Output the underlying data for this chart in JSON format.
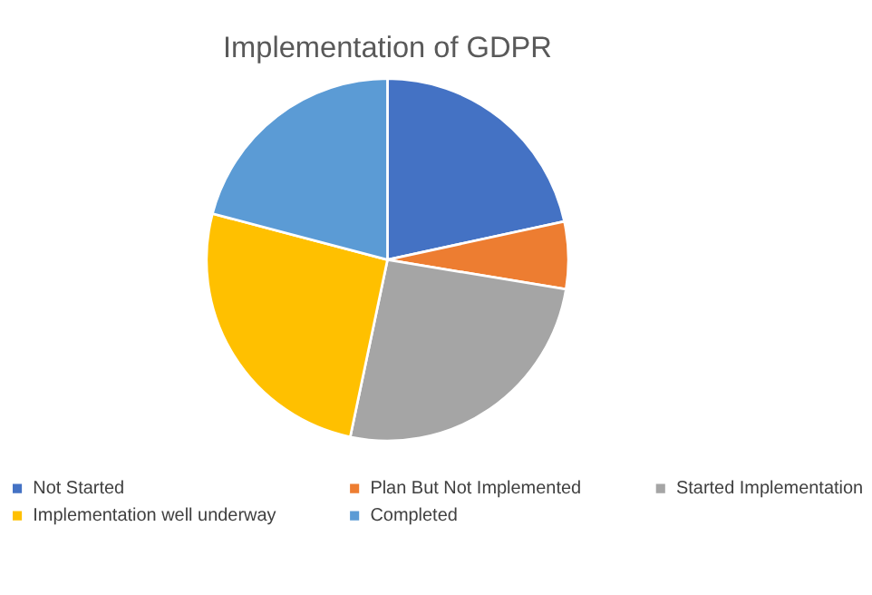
{
  "chart_data": {
    "type": "pie",
    "title": "Implementation of GDPR",
    "categories": [
      "Not Started",
      "Plan But Not Implemented",
      "Started Implementation",
      "Implementation well underway",
      "Completed"
    ],
    "values": [
      21.6,
      6,
      25.7,
      25.8,
      20.9
    ],
    "colors": [
      "#4472c4",
      "#ed7d31",
      "#a5a5a5",
      "#ffc000",
      "#5b9bd5"
    ],
    "legend": "bottom"
  }
}
